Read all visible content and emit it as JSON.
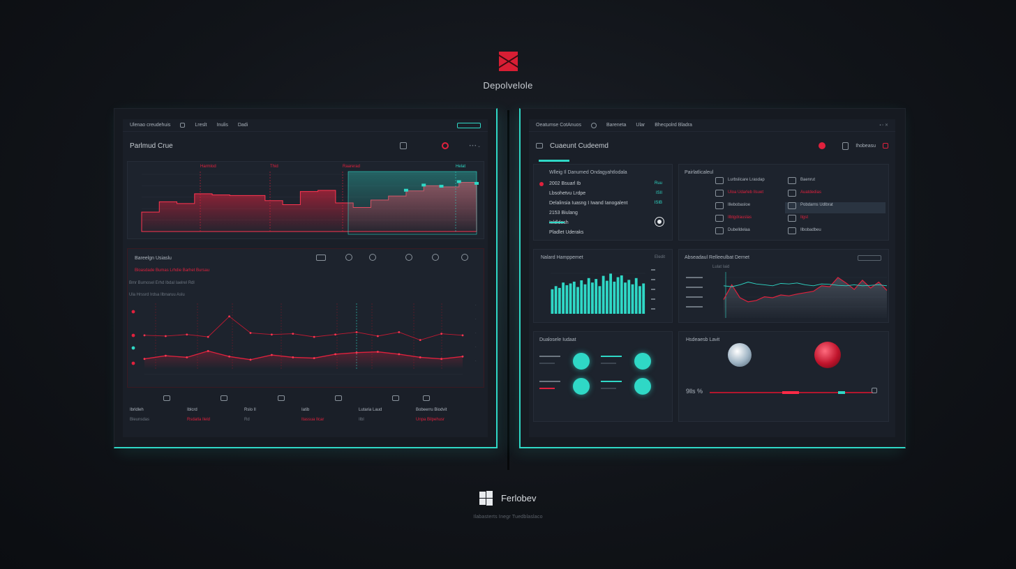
{
  "brand": {
    "name": "Depolvelole",
    "logo_icon": "red-square-logo-icon"
  },
  "footer": {
    "name": "Ferlobev",
    "tagline": "Ilabasterts Inegr Tuedblaslaco",
    "logo_icon": "windows-logo-icon"
  },
  "colors": {
    "accent": "#2fd8c6",
    "alert": "#e0213d",
    "background": "#111419"
  },
  "left": {
    "topbar": {
      "title": "Ulenao creudehuis",
      "items": [
        "Lreslt",
        "Inulis",
        "Dadi"
      ]
    },
    "header": {
      "title": "Parlmud Crue"
    },
    "chart1": {
      "markers": [
        "Harmlod",
        "Thid",
        "Raarerad",
        "Helat"
      ]
    },
    "section2": {
      "title": "Bareelgn Usiaslu",
      "subtitle": "Bloasdade Bumas Lrhdie Barhet Bursau",
      "legend": "Bmr Bumosel Erhd Ibdal Iaelrel Rdl",
      "row_label": "Ula Hrssrd Irdsa Ilbnaruu Aslu"
    },
    "bottom": [
      {
        "value": "Ibrldleh",
        "label": "Bleunsdas"
      },
      {
        "value": "Iblcrd",
        "label": "Rsdatla Ileld"
      },
      {
        "value": "Rslo Il",
        "label": "Rd"
      },
      {
        "value": "Iatib",
        "label": "Itassua Ilcar"
      },
      {
        "value": "Lutaria Laud",
        "label": "Ilbl"
      },
      {
        "value": "Bobeerru Biodvit",
        "label": "Unpa Bilpehusr"
      }
    ]
  },
  "right": {
    "topbar": {
      "title": "Oeatumse CotAnuos",
      "items": [
        "Bareneta",
        "Ular",
        "Bhecpolrd Bladra"
      ]
    },
    "header": {
      "title": "Cuaeunt Cudeemd",
      "badge": "Ihobeasu"
    },
    "list": {
      "lead": "Wlleig Il Danumed Ondagyahtlodala",
      "items": [
        {
          "label": "2002 Bsuarl Ib",
          "value": "Ruu"
        },
        {
          "label": "Lbsohetvu Lrdpe",
          "value": "ISII"
        },
        {
          "label": "Delalinsia Iuasng I Iwand Ianogalent",
          "value": "ISIB"
        },
        {
          "label": "2153 Biulang",
          "value": ""
        },
        {
          "label": "Isldldosh",
          "value": ""
        },
        {
          "label": "Pladlet Uderaks",
          "value": ""
        }
      ]
    },
    "activity": {
      "title": "Pairlatlicaleul",
      "entries": [
        {
          "label": "Lurbslicare Lrasdap",
          "meta": "Baenrut"
        },
        {
          "label": "Uloa Udarleb Ilsuet",
          "meta": "Auatdedias"
        },
        {
          "label": "Illebobasloe",
          "meta": "Pobdarns Udlbrat"
        },
        {
          "label": "Ilbtgdrauslas",
          "meta": "Ilgst"
        },
        {
          "label": "Dubelldelaa",
          "meta": "Ilbobadbeu"
        }
      ]
    },
    "bars": {
      "title": "Nalard Hamppemet",
      "badge": "Eledit"
    },
    "line": {
      "title": "Abseadaul Relleeulbat Dernet",
      "subtitle": "Lulat Iaid"
    },
    "metrics": {
      "title": "Dualosele Iudaat"
    },
    "gauge": {
      "title": "Hsdeaesb Lavit",
      "value": "9lls",
      "unit": "%"
    }
  },
  "chart_data": [
    {
      "type": "area",
      "name": "left-top",
      "series": [
        {
          "name": "Harmlod",
          "values": [
            34,
            52,
            49,
            66,
            64,
            63,
            63,
            54,
            47,
            70,
            72,
            50,
            42,
            55,
            62,
            71,
            80,
            78,
            86,
            83
          ]
        }
      ]
    },
    {
      "type": "line",
      "name": "left-middle",
      "series": [
        {
          "name": "Bareelgn",
          "values": [
            48,
            47,
            49,
            46,
            72,
            51,
            49,
            50,
            46,
            49,
            52,
            47,
            52,
            42,
            50,
            48
          ]
        },
        {
          "name": "Bumas",
          "values": [
            18,
            22,
            20,
            28,
            21,
            17,
            23,
            20,
            19,
            24,
            26,
            27,
            24,
            20,
            18,
            21
          ]
        }
      ]
    },
    {
      "type": "bar",
      "name": "right-bars",
      "values": [
        55,
        62,
        58,
        70,
        64,
        68,
        72,
        60,
        75,
        66,
        80,
        70,
        78,
        62,
        85,
        74,
        90,
        72,
        82,
        86,
        70,
        76,
        66,
        80,
        62,
        68
      ]
    },
    {
      "type": "line",
      "name": "right-line",
      "series": [
        {
          "name": "Lulat",
          "values": [
            40,
            72,
            44,
            35,
            38,
            46,
            44,
            50,
            48,
            52,
            55,
            58,
            70,
            68,
            88,
            76,
            62,
            82,
            65,
            78,
            60
          ]
        },
        {
          "name": "Iaid",
          "values": [
            70,
            68,
            72,
            78,
            74,
            72,
            70,
            75,
            74,
            76,
            72,
            70,
            74,
            73,
            71,
            70,
            72,
            70,
            71,
            72,
            70
          ]
        }
      ]
    }
  ]
}
